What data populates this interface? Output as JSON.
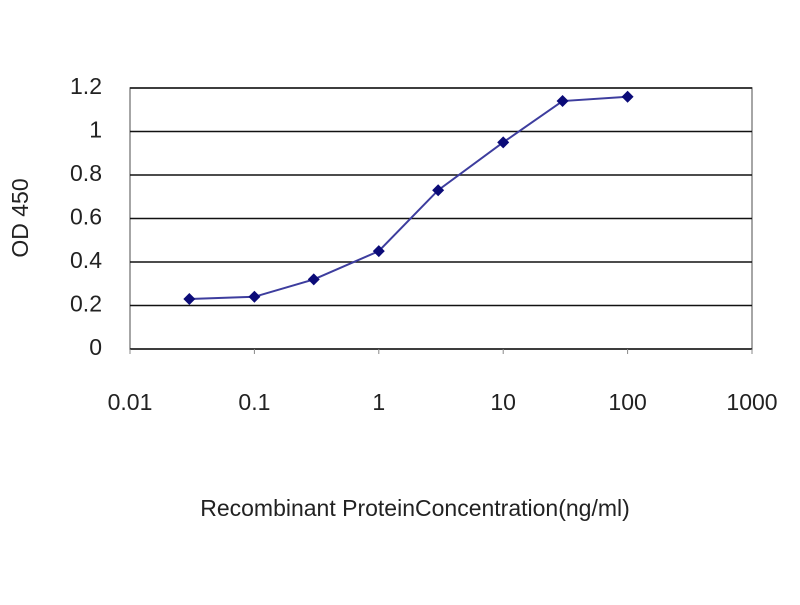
{
  "chart_data": {
    "type": "line",
    "x_label": "Recombinant ProteinConcentration(ng/ml)",
    "y_label": "OD 450",
    "x_log": true,
    "x": [
      0.03,
      0.1,
      0.3,
      1,
      3,
      10,
      30,
      100
    ],
    "series": [
      {
        "name": "OD 450",
        "color": "#3d3d9e",
        "marker_color": "#0b0b78",
        "values": [
          0.23,
          0.24,
          0.32,
          0.45,
          0.73,
          0.95,
          1.14,
          1.16
        ]
      }
    ],
    "xlim": [
      0.01,
      1000
    ],
    "xticks": [
      0.01,
      0.1,
      1,
      10,
      100,
      1000
    ],
    "ylim": [
      0,
      1.2
    ],
    "yticks": [
      0,
      0.2,
      0.4,
      0.6,
      0.8,
      1,
      1.2
    ],
    "grid": true
  }
}
